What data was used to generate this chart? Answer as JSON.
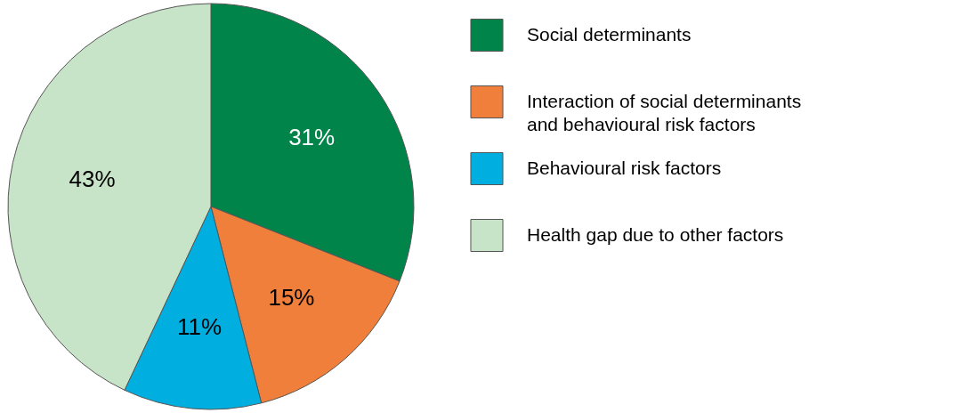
{
  "chart_data": {
    "type": "pie",
    "categories": [
      "Social determinants",
      "Interaction of social determinants and behavioural risk factors",
      "Behavioural risk factors",
      "Health gap due to other factors"
    ],
    "values": [
      31,
      15,
      11,
      43
    ],
    "colors": [
      "#00844a",
      "#f07f3c",
      "#00aedf",
      "#c8e4c8"
    ],
    "value_labels": [
      "31%",
      "15%",
      "11%",
      "43%"
    ],
    "legend": "right"
  }
}
